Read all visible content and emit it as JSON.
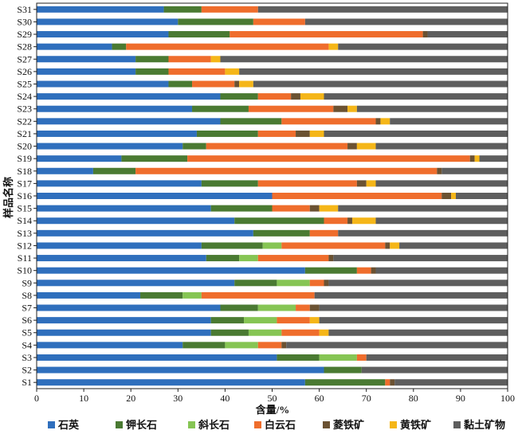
{
  "chart_data": {
    "type": "bar",
    "orientation": "horizontal",
    "stacked": true,
    "title": "",
    "xlabel": "含量/%",
    "ylabel": "样品名称",
    "xlim": [
      0,
      100
    ],
    "xticks": [
      0,
      10,
      20,
      30,
      40,
      50,
      60,
      70,
      80,
      90,
      100
    ],
    "grid": false,
    "legend_position": "bottom",
    "categories": [
      "S1",
      "S2",
      "S3",
      "S4",
      "S5",
      "S6",
      "S7",
      "S8",
      "S9",
      "S10",
      "S11",
      "S12",
      "S13",
      "S14",
      "S15",
      "S16",
      "S17",
      "S18",
      "S19",
      "S20",
      "S21",
      "S22",
      "S23",
      "S24",
      "S25",
      "S26",
      "S27",
      "S28",
      "S29",
      "S30",
      "S31"
    ],
    "series": [
      {
        "name": "石英",
        "color": "#2f6fbd",
        "values": [
          57,
          61,
          51,
          31,
          37,
          37,
          39,
          22,
          42,
          57,
          36,
          35,
          46,
          42,
          37,
          50,
          35,
          12,
          18,
          31,
          34,
          39,
          33,
          39,
          28,
          21,
          21,
          16,
          28,
          30,
          27
        ]
      },
      {
        "name": "钾长石",
        "color": "#4a7a32",
        "values": [
          17,
          8,
          9,
          9,
          8,
          7,
          8,
          9,
          9,
          11,
          7,
          13,
          12,
          19,
          13,
          0,
          12,
          9,
          14,
          5,
          13,
          13,
          12,
          8,
          5,
          7,
          7,
          3,
          13,
          16,
          8
        ]
      },
      {
        "name": "斜长石",
        "color": "#86c554",
        "values": [
          0,
          0,
          8,
          7,
          7,
          7,
          8,
          4,
          7,
          0,
          4,
          4,
          0,
          0,
          0,
          0,
          0,
          0,
          0,
          0,
          0,
          0,
          0,
          0,
          0,
          0,
          0,
          0,
          0,
          0,
          0
        ]
      },
      {
        "name": "白云石",
        "color": "#ef6d2c",
        "values": [
          1,
          0,
          2,
          5,
          8,
          7,
          3,
          24,
          3,
          3,
          15,
          22,
          6,
          5,
          8,
          36,
          21,
          64,
          60,
          30,
          8,
          20,
          18,
          7,
          9,
          12,
          9,
          43,
          41,
          11,
          12
        ]
      },
      {
        "name": "菱铁矿",
        "color": "#6b5232",
        "values": [
          1,
          0,
          0,
          1,
          0,
          0,
          2,
          0,
          1,
          1,
          1,
          1,
          0,
          1,
          2,
          2,
          2,
          1,
          1,
          2,
          3,
          1,
          3,
          2,
          1,
          0,
          0,
          0,
          1,
          0,
          0
        ]
      },
      {
        "name": "黄铁矿",
        "color": "#f5b618",
        "values": [
          0,
          0,
          0,
          0,
          2,
          2,
          0,
          0,
          0,
          0,
          0,
          2,
          0,
          5,
          4,
          1,
          2,
          0,
          1,
          4,
          3,
          2,
          2,
          5,
          3,
          3,
          2,
          2,
          0,
          0,
          0
        ]
      },
      {
        "name": "黏土矿物",
        "color": "#5e5e5e",
        "values": [
          24,
          31,
          30,
          47,
          38,
          40,
          40,
          41,
          38,
          28,
          37,
          23,
          36,
          28,
          36,
          11,
          28,
          14,
          6,
          28,
          39,
          25,
          32,
          39,
          54,
          57,
          61,
          36,
          17,
          43,
          53
        ]
      }
    ]
  }
}
